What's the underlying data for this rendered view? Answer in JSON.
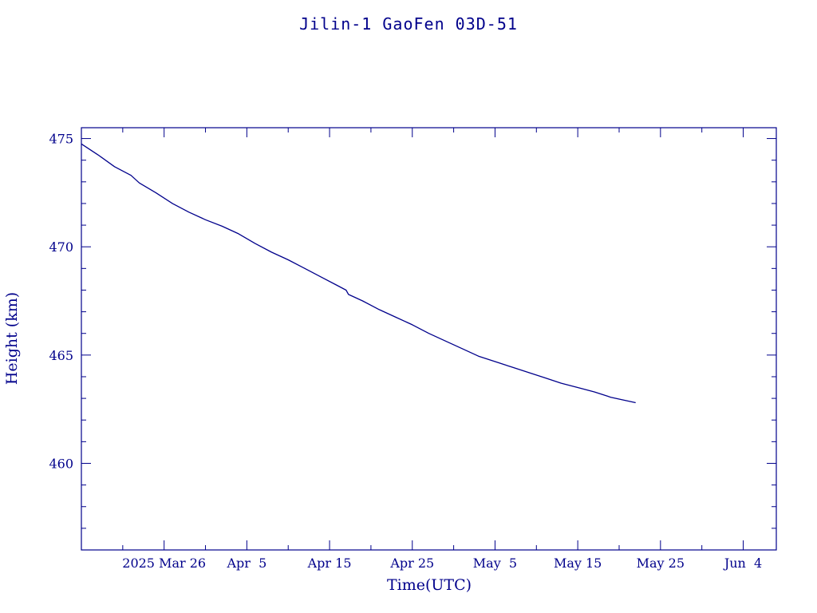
{
  "chart_data": {
    "type": "line",
    "title": "Jilin-1 GaoFen 03D-51",
    "xlabel": "Time(UTC)",
    "ylabel": "Height (km)",
    "xlim": [
      "2025-03-16",
      "2025-06-08"
    ],
    "ylim": [
      456.0,
      475.5
    ],
    "y_ticks": [
      460,
      465,
      470,
      475
    ],
    "y_minor_step": 1,
    "x_ticks": [
      {
        "date": "2025-03-26",
        "label": "2025 Mar 26"
      },
      {
        "date": "2025-04-05",
        "label": "Apr  5"
      },
      {
        "date": "2025-04-15",
        "label": "Apr 15"
      },
      {
        "date": "2025-04-25",
        "label": "Apr 25"
      },
      {
        "date": "2025-05-05",
        "label": "May  5"
      },
      {
        "date": "2025-05-15",
        "label": "May 15"
      },
      {
        "date": "2025-05-25",
        "label": "May 25"
      },
      {
        "date": "2025-06-04",
        "label": "Jun  4"
      }
    ],
    "x_minor_step_days": 5,
    "grid": false,
    "legend": "none",
    "color": "#00008b",
    "series": [
      {
        "points": [
          {
            "x": "2025-03-16",
            "y": 474.75
          },
          {
            "x": "2025-03-18",
            "y": 474.25
          },
          {
            "x": "2025-03-20",
            "y": 473.7
          },
          {
            "x": "2025-03-22",
            "y": 473.3
          },
          {
            "x": "2025-03-23",
            "y": 472.95
          },
          {
            "x": "2025-03-25",
            "y": 472.5
          },
          {
            "x": "2025-03-27",
            "y": 472.0
          },
          {
            "x": "2025-03-29",
            "y": 471.6
          },
          {
            "x": "2025-03-31",
            "y": 471.25
          },
          {
            "x": "2025-04-02",
            "y": 470.95
          },
          {
            "x": "2025-04-04",
            "y": 470.6
          },
          {
            "x": "2025-04-06",
            "y": 470.15
          },
          {
            "x": "2025-04-08",
            "y": 469.75
          },
          {
            "x": "2025-04-10",
            "y": 469.4
          },
          {
            "x": "2025-04-12",
            "y": 469.0
          },
          {
            "x": "2025-04-14",
            "y": 468.6
          },
          {
            "x": "2025-04-16",
            "y": 468.2
          },
          {
            "x": "2025-04-17",
            "y": 468.0
          },
          {
            "x": "2025-04-17",
            "y": 467.8
          },
          {
            "x": "2025-04-19",
            "y": 467.5
          },
          {
            "x": "2025-04-21",
            "y": 467.1
          },
          {
            "x": "2025-04-23",
            "y": 466.75
          },
          {
            "x": "2025-04-25",
            "y": 466.4
          },
          {
            "x": "2025-04-27",
            "y": 466.0
          },
          {
            "x": "2025-04-29",
            "y": 465.65
          },
          {
            "x": "2025-05-01",
            "y": 465.3
          },
          {
            "x": "2025-05-03",
            "y": 464.95
          },
          {
            "x": "2025-05-05",
            "y": 464.7
          },
          {
            "x": "2025-05-07",
            "y": 464.45
          },
          {
            "x": "2025-05-09",
            "y": 464.2
          },
          {
            "x": "2025-05-11",
            "y": 463.95
          },
          {
            "x": "2025-05-13",
            "y": 463.7
          },
          {
            "x": "2025-05-15",
            "y": 463.5
          },
          {
            "x": "2025-05-17",
            "y": 463.3
          },
          {
            "x": "2025-05-19",
            "y": 463.05
          },
          {
            "x": "2025-05-22",
            "y": 462.8
          }
        ]
      }
    ]
  }
}
